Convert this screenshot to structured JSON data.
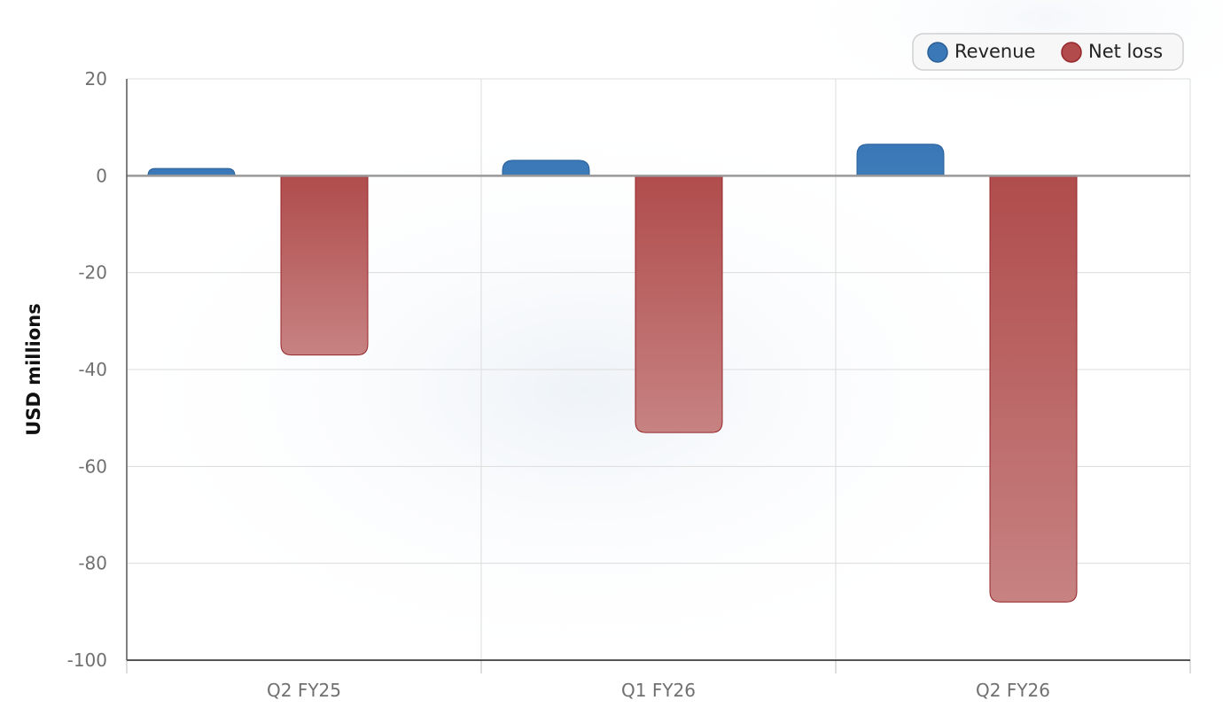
{
  "chart_data": {
    "type": "bar",
    "categories": [
      "Q2 FY25",
      "Q1 FY26",
      "Q2 FY26"
    ],
    "series": [
      {
        "name": "Revenue",
        "values": [
          1.5,
          3.2,
          6.5
        ]
      },
      {
        "name": "Net loss",
        "values": [
          -37,
          -53,
          -88
        ]
      }
    ],
    "xlabel": "",
    "ylabel": "USD millions",
    "ylim": [
      -100,
      20
    ],
    "yticks": [
      20,
      0,
      -20,
      -40,
      -60,
      -80,
      -100
    ],
    "grid": true,
    "legend": {
      "placement": "top-right"
    },
    "colors": {
      "Revenue": "#3a78b8",
      "Net loss": "#b24c4c"
    }
  }
}
